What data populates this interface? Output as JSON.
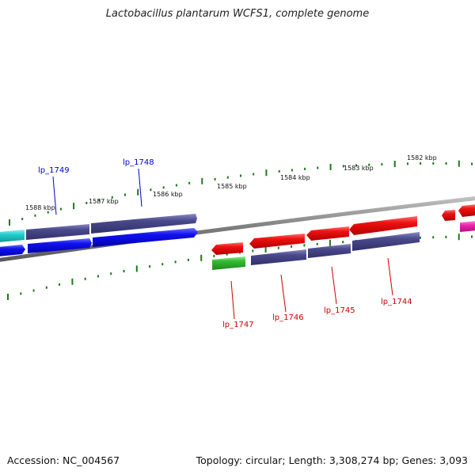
{
  "title": "Lactobacillus plantarum WCFS1, complete genome",
  "footer": {
    "accession": "Accession: NC_004567",
    "topology": "Topology: circular; Length: 3,308,274 bp; Genes: 3,093"
  },
  "colors": {
    "backbone": "#8a8a8a",
    "tick": "#1a7a1a",
    "forward_label": "#0000cc",
    "reverse_label": "#cc0000",
    "blue": "#1010ee",
    "navy": "#4a4a8c",
    "red": "#ee1111",
    "green": "#33bb33",
    "cyan": "#22cccc",
    "magenta": "#ee22aa"
  },
  "scale_labels": [
    "1582 kbp",
    "1583 kbp",
    "1584 kbp",
    "1585 kbp",
    "1586 kbp",
    "1587 kbp",
    "1588 kbp"
  ],
  "gene_labels": {
    "lp_1749": "lp_1749",
    "lp_1748": "lp_1748",
    "lp_1747": "lp_1747",
    "lp_1746": "lp_1746",
    "lp_1745": "lp_1745",
    "lp_1744": "lp_1744"
  }
}
